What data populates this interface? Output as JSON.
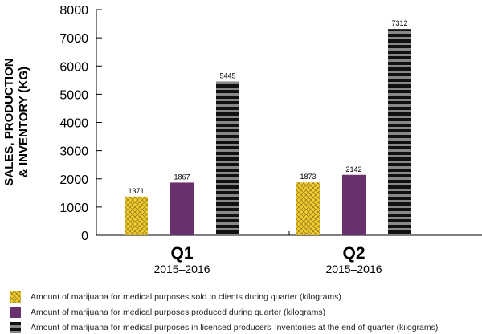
{
  "chart_data": {
    "type": "bar",
    "ylabel": "SALES, PRODUCTION & INVENTORY (KG)",
    "ylabel_lines": [
      "SALES, PRODUCTION",
      "& INVENTORY (KG)"
    ],
    "ylim": [
      0,
      8000
    ],
    "yticks": [
      "0",
      "1000",
      "2000",
      "3000",
      "4000",
      "5000",
      "6000",
      "7000",
      "8000"
    ],
    "categories": [
      {
        "label": "Q1",
        "sub": "2015–2016"
      },
      {
        "label": "Q2",
        "sub": "2015–2016"
      }
    ],
    "series": [
      {
        "name": "Amount of marijuana for medical purposes sold to clients during quarter (kilograms)",
        "values": [
          1371,
          1873
        ],
        "color": "#f2cd2e",
        "pattern": "crosshatch"
      },
      {
        "name": "Amount of marijuana for medical purposes produced during quarter (kilograms)",
        "values": [
          1867,
          2142
        ],
        "color": "#69306d",
        "pattern": "solid"
      },
      {
        "name": "Amount of marijuana for medical purposes in licensed producers’ inventories at the end of quarter (kilograms)",
        "values": [
          5445,
          7312
        ],
        "color": "#111111",
        "pattern": "stripes"
      }
    ],
    "value_labels": [
      [
        "1371",
        "1873"
      ],
      [
        "1867",
        "2142"
      ],
      [
        "5445",
        "7312"
      ]
    ]
  }
}
